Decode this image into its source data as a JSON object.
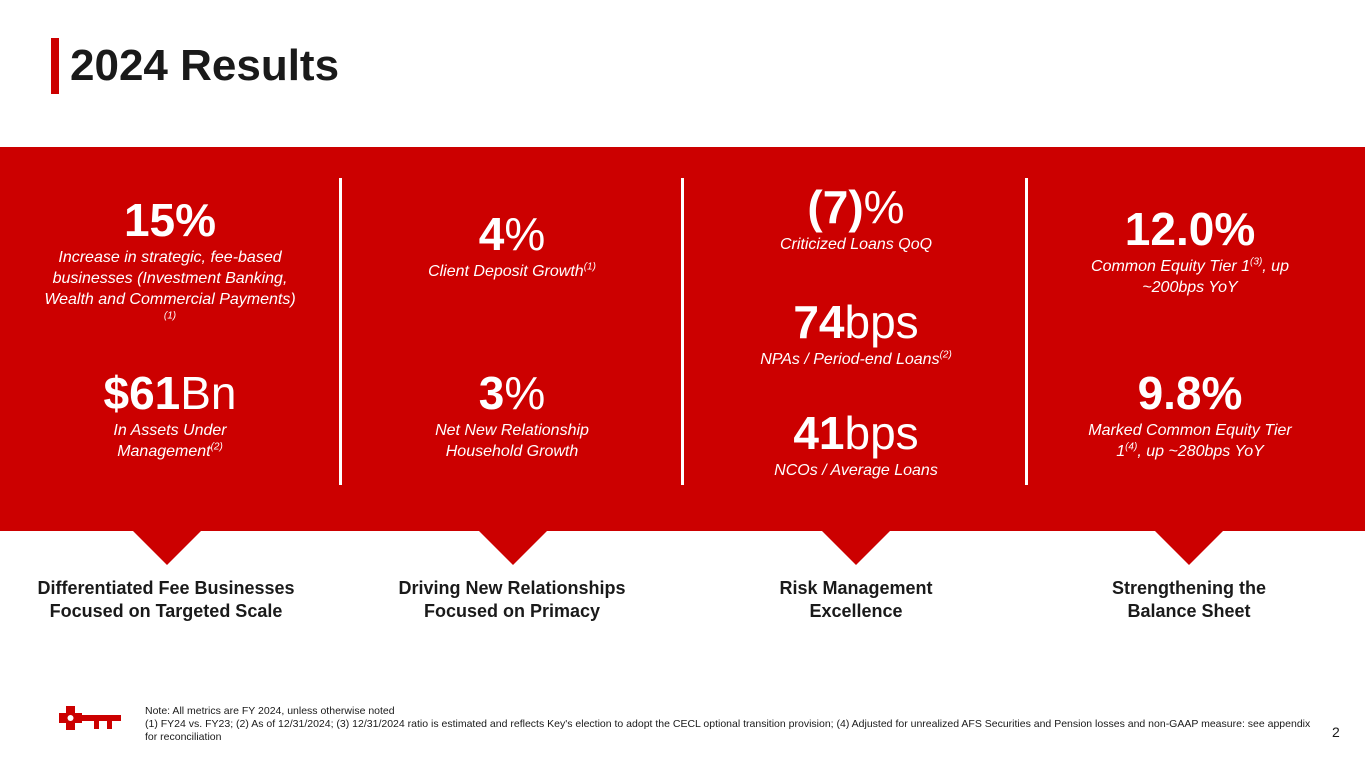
{
  "page": {
    "title": "2024 Results",
    "number": "2"
  },
  "columns": [
    {
      "metrics": [
        {
          "value_bold": "15",
          "value_rest": "%",
          "desc": "Increase in strategic, fee-based businesses (Investment Banking, Wealth and Commercial Payments)",
          "sup": "(1)"
        },
        {
          "value_bold": "$61",
          "value_rest": "Bn",
          "desc": "In Assets Under Management",
          "sup": "(2)"
        }
      ],
      "caption_line1": "Differentiated Fee Businesses",
      "caption_line2": "Focused on Targeted Scale"
    },
    {
      "metrics": [
        {
          "value_bold": "4",
          "value_rest": "%",
          "desc": "Client Deposit Growth",
          "sup": "(1)"
        },
        {
          "value_bold": "3",
          "value_rest": "%",
          "desc": "Net New Relationship Household Growth"
        }
      ],
      "caption_line1": "Driving New Relationships",
      "caption_line2": "Focused on Primacy"
    },
    {
      "metrics": [
        {
          "value_bold": "(7)",
          "value_rest": "%",
          "desc": "Criticized Loans QoQ"
        },
        {
          "value_bold": "74",
          "value_rest": "bps",
          "desc": "NPAs / Period-end Loans",
          "sup": "(2)"
        },
        {
          "value_bold": "41",
          "value_rest": "bps",
          "desc": "NCOs / Average Loans"
        }
      ],
      "caption_line1": "Risk Management",
      "caption_line2": "Excellence"
    },
    {
      "metrics": [
        {
          "value_bold": "12.0",
          "value_rest": "%",
          "desc_pre": "Common Equity Tier 1",
          "sup": "(3)",
          "desc_post": ", up ~200bps YoY"
        },
        {
          "value_bold": "9.8",
          "value_rest": "%",
          "desc_pre": "Marked Common Equity Tier 1",
          "sup": "(4)",
          "desc_post": ", up ~280bps YoY"
        }
      ],
      "caption_line1": "Strengthening the",
      "caption_line2": "Balance Sheet"
    }
  ],
  "footer": {
    "note_line1": "Note: All metrics are FY 2024, unless otherwise noted",
    "note_line2": "(1) FY24 vs. FY23; (2) As of 12/31/2024; (3) 12/31/2024 ratio is estimated and reflects Key's election to adopt the CECL optional transition provision; (4) Adjusted for unrealized AFS Securities and Pension losses and non-GAAP measure: see appendix for reconciliation"
  },
  "colors": {
    "brand_red": "#cc0000"
  }
}
